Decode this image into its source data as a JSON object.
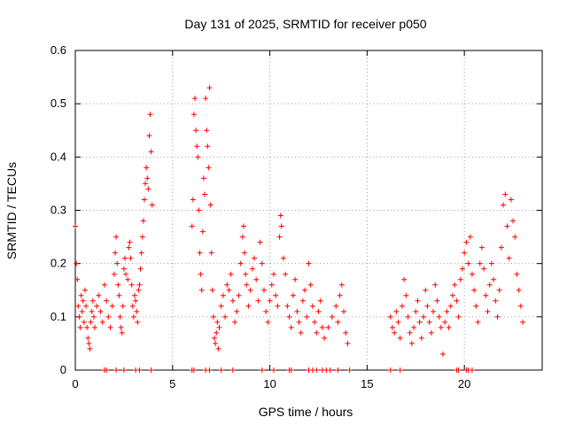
{
  "chart_data": {
    "type": "scatter",
    "title": "Day 131 of 2025, SRMTID for receiver p050",
    "xlabel": "GPS time / hours",
    "ylabel": "SRMTID / TECUs",
    "xlim": [
      0,
      24
    ],
    "ylim": [
      0,
      0.6
    ],
    "xticks": [
      0,
      5,
      10,
      15,
      20
    ],
    "xtick_labels": [
      "0",
      "5",
      "10",
      "15",
      "20"
    ],
    "yticks": [
      0,
      0.1,
      0.2,
      0.3,
      0.4,
      0.5,
      0.6
    ],
    "ytick_labels": [
      "0",
      "0.1",
      "0.2",
      "0.3",
      "0.4",
      "0.5",
      "0.6"
    ],
    "grid": true,
    "marker": "+",
    "color": "#ff0000",
    "series": [
      {
        "name": "p050",
        "points": [
          [
            0.0,
            0.27
          ],
          [
            0.05,
            0.2
          ],
          [
            0.1,
            0.17
          ],
          [
            0.15,
            0.12
          ],
          [
            0.2,
            0.1
          ],
          [
            0.25,
            0.08
          ],
          [
            0.3,
            0.14
          ],
          [
            0.35,
            0.11
          ],
          [
            0.4,
            0.13
          ],
          [
            0.45,
            0.09
          ],
          [
            0.5,
            0.15
          ],
          [
            0.55,
            0.12
          ],
          [
            0.6,
            0.08
          ],
          [
            0.65,
            0.06
          ],
          [
            0.7,
            0.05
          ],
          [
            0.75,
            0.04
          ],
          [
            0.8,
            0.09
          ],
          [
            0.85,
            0.11
          ],
          [
            0.9,
            0.13
          ],
          [
            0.95,
            0.1
          ],
          [
            1.0,
            0.08
          ],
          [
            1.1,
            0.12
          ],
          [
            1.2,
            0.14
          ],
          [
            1.3,
            0.11
          ],
          [
            1.4,
            0.09
          ],
          [
            1.5,
            0.16
          ],
          [
            1.6,
            0.13
          ],
          [
            1.7,
            0.1
          ],
          [
            1.8,
            0.08
          ],
          [
            1.9,
            0.12
          ],
          [
            2.0,
            0.18
          ],
          [
            2.05,
            0.22
          ],
          [
            2.1,
            0.25
          ],
          [
            2.15,
            0.2
          ],
          [
            2.2,
            0.16
          ],
          [
            2.25,
            0.14
          ],
          [
            2.3,
            0.1
          ],
          [
            2.35,
            0.08
          ],
          [
            2.4,
            0.07
          ],
          [
            2.45,
            0.12
          ],
          [
            2.5,
            0.19
          ],
          [
            2.55,
            0.21
          ],
          [
            2.6,
            0.18
          ],
          [
            2.7,
            0.17
          ],
          [
            2.75,
            0.23
          ],
          [
            2.8,
            0.24
          ],
          [
            2.85,
            0.21
          ],
          [
            2.9,
            0.16
          ],
          [
            2.95,
            0.12
          ],
          [
            3.0,
            0.1
          ],
          [
            3.05,
            0.14
          ],
          [
            3.1,
            0.13
          ],
          [
            3.15,
            0.11
          ],
          [
            3.2,
            0.09
          ],
          [
            3.25,
            0.15
          ],
          [
            3.3,
            0.16
          ],
          [
            3.35,
            0.19
          ],
          [
            3.4,
            0.22
          ],
          [
            3.45,
            0.25
          ],
          [
            3.5,
            0.28
          ],
          [
            3.55,
            0.32
          ],
          [
            3.6,
            0.35
          ],
          [
            3.65,
            0.38
          ],
          [
            3.7,
            0.36
          ],
          [
            3.75,
            0.34
          ],
          [
            3.8,
            0.44
          ],
          [
            3.85,
            0.48
          ],
          [
            3.9,
            0.41
          ],
          [
            3.95,
            0.31
          ],
          [
            6.0,
            0.27
          ],
          [
            6.05,
            0.32
          ],
          [
            6.1,
            0.48
          ],
          [
            6.15,
            0.51
          ],
          [
            6.2,
            0.45
          ],
          [
            6.25,
            0.42
          ],
          [
            6.3,
            0.4
          ],
          [
            6.35,
            0.3
          ],
          [
            6.4,
            0.22
          ],
          [
            6.45,
            0.18
          ],
          [
            6.5,
            0.15
          ],
          [
            6.55,
            0.26
          ],
          [
            6.6,
            0.36
          ],
          [
            6.65,
            0.33
          ],
          [
            6.7,
            0.51
          ],
          [
            6.75,
            0.45
          ],
          [
            6.8,
            0.42
          ],
          [
            6.85,
            0.38
          ],
          [
            6.9,
            0.53
          ],
          [
            6.95,
            0.31
          ],
          [
            7.0,
            0.22
          ],
          [
            7.05,
            0.15
          ],
          [
            7.1,
            0.1
          ],
          [
            7.15,
            0.06
          ],
          [
            7.2,
            0.05
          ],
          [
            7.25,
            0.07
          ],
          [
            7.3,
            0.09
          ],
          [
            7.35,
            0.04
          ],
          [
            7.4,
            0.08
          ],
          [
            7.5,
            0.12
          ],
          [
            7.6,
            0.14
          ],
          [
            7.7,
            0.1
          ],
          [
            7.8,
            0.16
          ],
          [
            7.9,
            0.15
          ],
          [
            8.0,
            0.18
          ],
          [
            8.1,
            0.13
          ],
          [
            8.2,
            0.09
          ],
          [
            8.3,
            0.11
          ],
          [
            8.4,
            0.14
          ],
          [
            8.5,
            0.2
          ],
          [
            8.6,
            0.25
          ],
          [
            8.65,
            0.27
          ],
          [
            8.7,
            0.22
          ],
          [
            8.75,
            0.18
          ],
          [
            8.8,
            0.16
          ],
          [
            8.9,
            0.12
          ],
          [
            9.0,
            0.15
          ],
          [
            9.1,
            0.19
          ],
          [
            9.2,
            0.21
          ],
          [
            9.3,
            0.17
          ],
          [
            9.4,
            0.13
          ],
          [
            9.5,
            0.24
          ],
          [
            9.6,
            0.2
          ],
          [
            9.7,
            0.15
          ],
          [
            9.8,
            0.11
          ],
          [
            9.9,
            0.09
          ],
          [
            10.0,
            0.13
          ],
          [
            10.1,
            0.16
          ],
          [
            10.2,
            0.18
          ],
          [
            10.3,
            0.14
          ],
          [
            10.4,
            0.12
          ],
          [
            10.5,
            0.25
          ],
          [
            10.55,
            0.29
          ],
          [
            10.6,
            0.27
          ],
          [
            10.7,
            0.21
          ],
          [
            10.8,
            0.18
          ],
          [
            10.9,
            0.12
          ],
          [
            11.0,
            0.1
          ],
          [
            11.1,
            0.08
          ],
          [
            11.2,
            0.14
          ],
          [
            11.3,
            0.17
          ],
          [
            11.4,
            0.11
          ],
          [
            11.5,
            0.09
          ],
          [
            11.6,
            0.07
          ],
          [
            11.7,
            0.13
          ],
          [
            11.8,
            0.15
          ],
          [
            11.9,
            0.1
          ],
          [
            12.0,
            0.2
          ],
          [
            12.1,
            0.16
          ],
          [
            12.2,
            0.12
          ],
          [
            12.3,
            0.09
          ],
          [
            12.4,
            0.07
          ],
          [
            12.5,
            0.11
          ],
          [
            12.6,
            0.13
          ],
          [
            12.7,
            0.08
          ],
          [
            12.8,
            0.06
          ],
          [
            13.0,
            0.08
          ],
          [
            13.2,
            0.1
          ],
          [
            13.4,
            0.12
          ],
          [
            13.5,
            0.09
          ],
          [
            13.6,
            0.14
          ],
          [
            13.7,
            0.16
          ],
          [
            13.8,
            0.11
          ],
          [
            13.9,
            0.07
          ],
          [
            14.0,
            0.05
          ],
          [
            16.2,
            0.1
          ],
          [
            16.3,
            0.08
          ],
          [
            16.4,
            0.07
          ],
          [
            16.5,
            0.11
          ],
          [
            16.6,
            0.09
          ],
          [
            16.7,
            0.06
          ],
          [
            16.8,
            0.12
          ],
          [
            16.9,
            0.17
          ],
          [
            17.0,
            0.14
          ],
          [
            17.1,
            0.1
          ],
          [
            17.2,
            0.07
          ],
          [
            17.3,
            0.05
          ],
          [
            17.4,
            0.08
          ],
          [
            17.5,
            0.11
          ],
          [
            17.6,
            0.13
          ],
          [
            17.7,
            0.09
          ],
          [
            17.8,
            0.06
          ],
          [
            17.9,
            0.1
          ],
          [
            18.0,
            0.15
          ],
          [
            18.1,
            0.12
          ],
          [
            18.2,
            0.09
          ],
          [
            18.3,
            0.07
          ],
          [
            18.4,
            0.11
          ],
          [
            18.5,
            0.16
          ],
          [
            18.6,
            0.13
          ],
          [
            18.7,
            0.1
          ],
          [
            18.8,
            0.08
          ],
          [
            18.9,
            0.03
          ],
          [
            19.0,
            0.09
          ],
          [
            19.1,
            0.11
          ],
          [
            19.2,
            0.08
          ],
          [
            19.3,
            0.12
          ],
          [
            19.4,
            0.14
          ],
          [
            19.5,
            0.16
          ],
          [
            19.6,
            0.13
          ],
          [
            19.7,
            0.1
          ],
          [
            19.8,
            0.17
          ],
          [
            19.9,
            0.19
          ],
          [
            20.0,
            0.22
          ],
          [
            20.1,
            0.24
          ],
          [
            20.2,
            0.2
          ],
          [
            20.3,
            0.25
          ],
          [
            20.4,
            0.18
          ],
          [
            20.5,
            0.15
          ],
          [
            20.6,
            0.12
          ],
          [
            20.7,
            0.09
          ],
          [
            20.8,
            0.2
          ],
          [
            20.9,
            0.23
          ],
          [
            21.0,
            0.19
          ],
          [
            21.1,
            0.14
          ],
          [
            21.2,
            0.11
          ],
          [
            21.3,
            0.16
          ],
          [
            21.4,
            0.2
          ],
          [
            21.5,
            0.17
          ],
          [
            21.6,
            0.13
          ],
          [
            21.7,
            0.1
          ],
          [
            21.8,
            0.15
          ],
          [
            21.9,
            0.23
          ],
          [
            22.0,
            0.31
          ],
          [
            22.1,
            0.33
          ],
          [
            22.2,
            0.27
          ],
          [
            22.3,
            0.21
          ],
          [
            22.4,
            0.32
          ],
          [
            22.5,
            0.28
          ],
          [
            22.6,
            0.25
          ],
          [
            22.7,
            0.18
          ],
          [
            22.8,
            0.15
          ],
          [
            22.9,
            0.12
          ],
          [
            23.0,
            0.09
          ]
        ]
      }
    ],
    "zero_points_x": [
      1.5,
      1.6,
      2.1,
      2.5,
      3.1,
      3.3,
      3.9,
      6.0,
      6.1,
      6.7,
      6.9,
      7.5,
      8.1,
      9.6,
      10.2,
      11.0,
      11.1,
      12.0,
      12.2,
      12.4,
      12.7,
      12.9,
      13.1,
      13.5,
      14.1,
      16.2,
      16.7,
      19.6,
      19.7,
      20.1,
      20.2,
      20.4
    ]
  }
}
